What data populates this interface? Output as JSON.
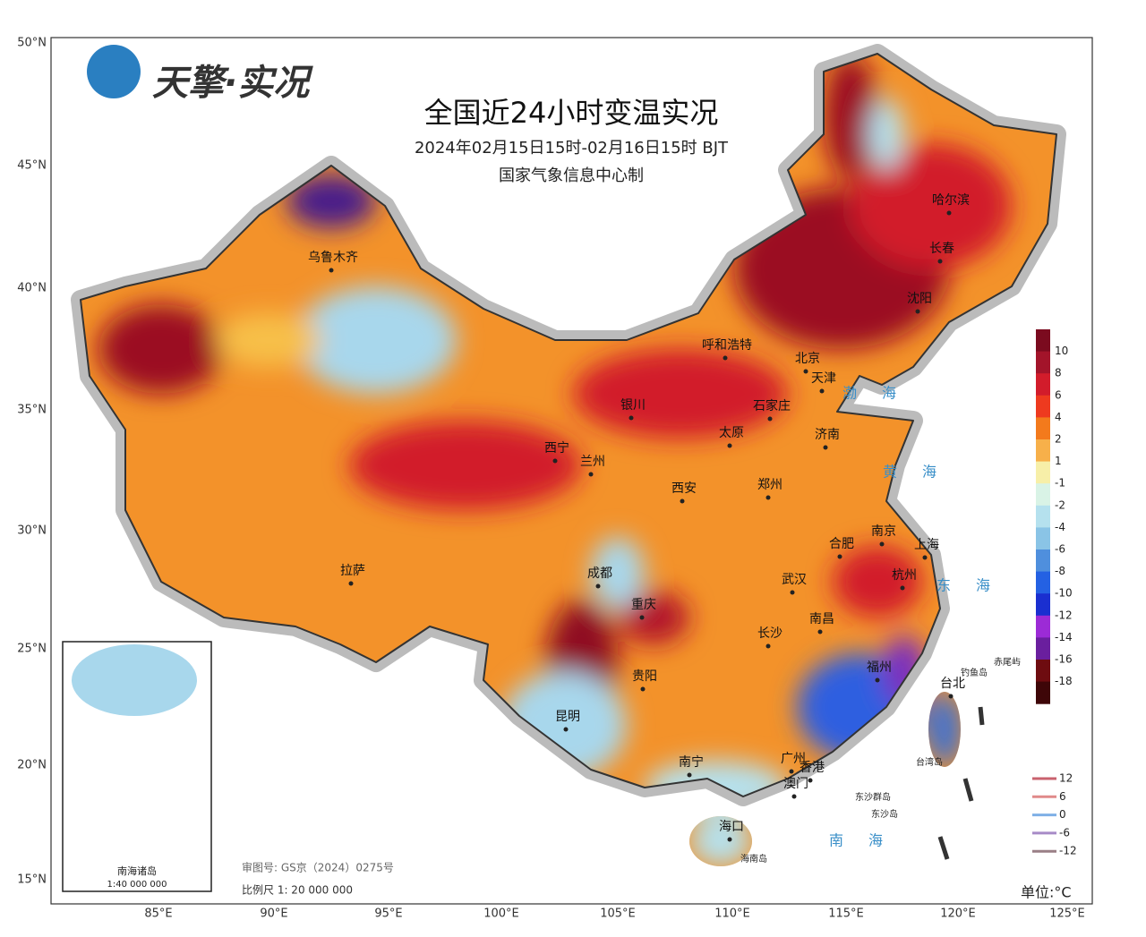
{
  "header": {
    "logo": "天擎·实况",
    "title": "全国近24小时变温实况",
    "subtitle": "2024年02月15日15时-02月16日15时 BJT",
    "producer": "国家气象信息中心制"
  },
  "lat_labels": [
    "50°N",
    "45°N",
    "40°N",
    "35°N",
    "30°N",
    "25°N",
    "20°N",
    "15°N"
  ],
  "lon_labels": [
    "85°E",
    "90°E",
    "95°E",
    "100°E",
    "105°E",
    "110°E",
    "115°E",
    "120°E",
    "125°E"
  ],
  "cities": [
    "乌鲁木齐",
    "呼和浩特",
    "北京",
    "天津",
    "石家庄",
    "银川",
    "太原",
    "济南",
    "西宁",
    "兰州",
    "西安",
    "郑州",
    "合肥",
    "南京",
    "上海",
    "成都",
    "武汉",
    "杭州",
    "拉萨",
    "重庆",
    "长沙",
    "南昌",
    "贵阳",
    "福州",
    "台北",
    "昆明",
    "广州",
    "南宁",
    "香港",
    "澳门",
    "海口",
    "哈尔滨",
    "长春",
    "沈阳"
  ],
  "seas": [
    "渤海",
    "黄海",
    "东海",
    "南海"
  ],
  "islands": [
    "钓鱼岛",
    "赤尾屿",
    "台湾岛",
    "东沙群岛",
    "东沙岛",
    "海南岛"
  ],
  "legend": {
    "labels": [
      10,
      8,
      6,
      4,
      2,
      1,
      -1,
      -2,
      -4,
      -6,
      -8,
      -10,
      -12,
      -14,
      -16,
      -18
    ],
    "colors": [
      "#7b0b1f",
      "#a3142a",
      "#d21c2b",
      "#ee3a1f",
      "#f37a1c",
      "#f7b04a",
      "#f7efa8",
      "#d9f3e6",
      "#b5e1ee",
      "#8ac4e6",
      "#4f8fdd",
      "#2461e3",
      "#1a2fd0",
      "#9c2bd6",
      "#6a1f9e",
      "#6e0c10",
      "#3e0608"
    ]
  },
  "line_legend": {
    "labels": [
      12,
      6,
      0,
      -6,
      -12
    ],
    "colors": [
      "#c9626e",
      "#e08a8a",
      "#7fb0e6",
      "#a78bc7",
      "#9a7f86"
    ]
  },
  "unit": "单位:°C",
  "inset": {
    "title": "南海诸岛",
    "scale": "1:40 000 000"
  },
  "review_number": "审图号: GS京（2024）0275号",
  "scale": "比例尺 1: 20 000 000"
}
